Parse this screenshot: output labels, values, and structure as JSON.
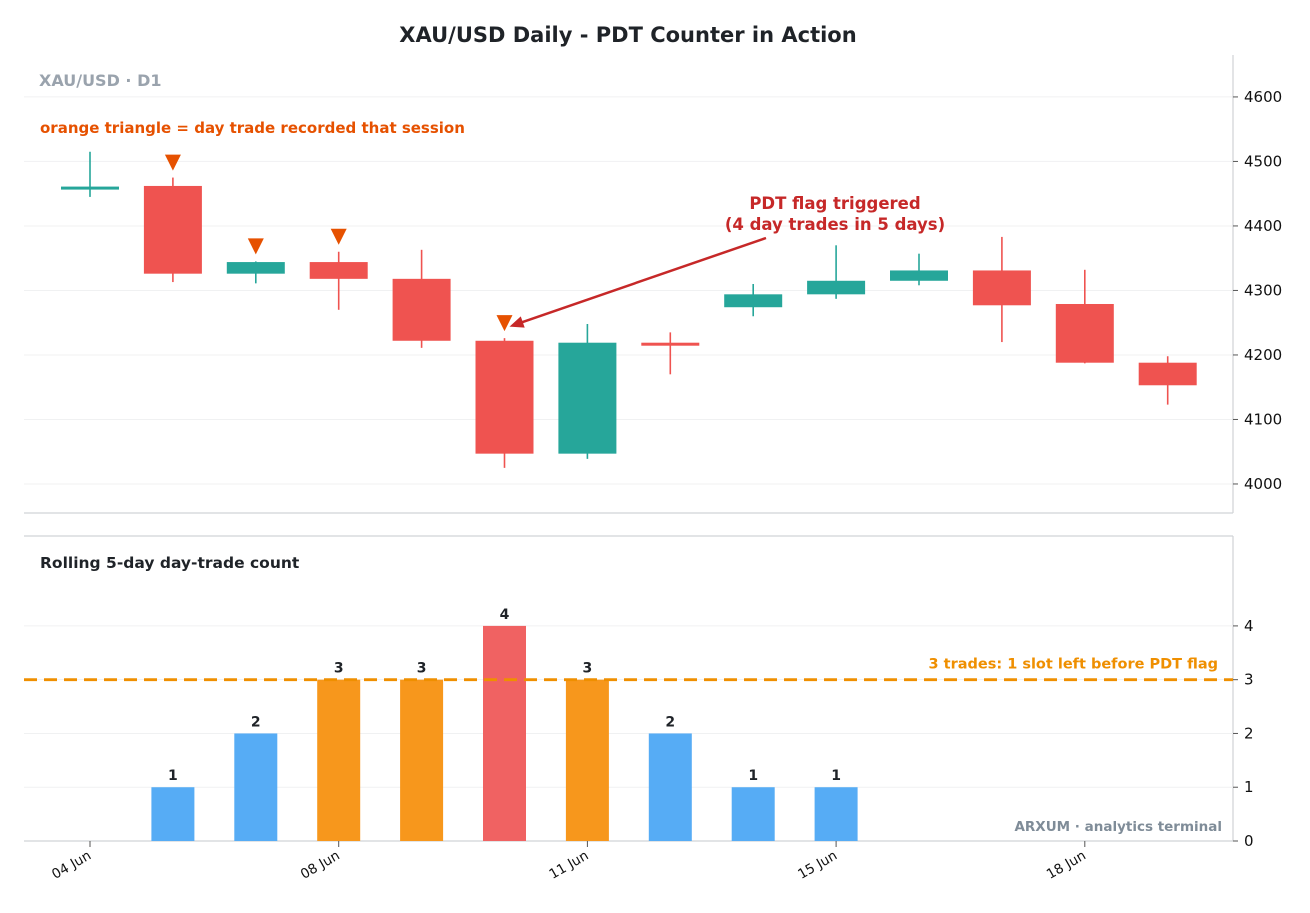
{
  "title": "XAU/USD Daily - PDT Counter in Action",
  "colors": {
    "up": "#26a69a",
    "down": "#ef5350",
    "marker": "#e65100",
    "bar_normal": "#56acf5",
    "bar_warn": "#f7971c",
    "bar_flag": "#f06262",
    "threshold": "#ef8f00",
    "annotation": "#c62828"
  },
  "chart_data": [
    {
      "type": "candlestick",
      "symbol_label": "XAU/USD · D1",
      "legend_note": "orange triangle = day trade recorded that session",
      "ylim": [
        3955,
        4665
      ],
      "y_ticks": [
        "4000",
        "4100",
        "4200",
        "4300",
        "4400",
        "4500",
        "4600"
      ],
      "x_ticks": [
        "04 Jun",
        "08 Jun",
        "11 Jun",
        "15 Jun",
        "18 Jun"
      ],
      "x_tick_index": [
        0,
        3,
        6,
        9,
        12
      ],
      "candles": [
        {
          "open": 4459,
          "high": 4515,
          "low": 4445,
          "close": 4461,
          "day_trade": false
        },
        {
          "open": 4462,
          "high": 4475,
          "low": 4313,
          "close": 4326,
          "day_trade": true
        },
        {
          "open": 4326,
          "high": 4345,
          "low": 4311,
          "close": 4344,
          "day_trade": true
        },
        {
          "open": 4344,
          "high": 4360,
          "low": 4270,
          "close": 4318,
          "day_trade": true
        },
        {
          "open": 4318,
          "high": 4363,
          "low": 4211,
          "close": 4222,
          "day_trade": false
        },
        {
          "open": 4222,
          "high": 4226,
          "low": 4025,
          "close": 4047,
          "day_trade": true
        },
        {
          "open": 4047,
          "high": 4248,
          "low": 4039,
          "close": 4219,
          "day_trade": false
        },
        {
          "open": 4219,
          "high": 4235,
          "low": 4170,
          "close": 4217,
          "day_trade": false
        },
        {
          "open": 4274,
          "high": 4310,
          "low": 4260,
          "close": 4294,
          "day_trade": false
        },
        {
          "open": 4294,
          "high": 4370,
          "low": 4287,
          "close": 4315,
          "day_trade": false
        },
        {
          "open": 4315,
          "high": 4357,
          "low": 4308,
          "close": 4331,
          "day_trade": false
        },
        {
          "open": 4331,
          "high": 4383,
          "low": 4220,
          "close": 4277,
          "day_trade": false
        },
        {
          "open": 4279,
          "high": 4332,
          "low": 4187,
          "close": 4188,
          "day_trade": false
        },
        {
          "open": 4188,
          "high": 4198,
          "low": 4123,
          "close": 4153,
          "day_trade": false
        }
      ],
      "annotation": {
        "lines": [
          "PDT flag triggered",
          "(4 day trades in 5 days)"
        ],
        "target_index": 5,
        "target_value": 4244
      }
    },
    {
      "type": "bar",
      "title": "Rolling 5-day day-trade count",
      "ylim": [
        0,
        5.3
      ],
      "y_ticks": [
        "0",
        "1",
        "2",
        "3",
        "4"
      ],
      "values": [
        0,
        1,
        2,
        3,
        3,
        4,
        3,
        2,
        1,
        1,
        0,
        0,
        0,
        0
      ],
      "threshold": 3,
      "threshold_label": "3 trades: 1 slot left before PDT flag"
    }
  ],
  "watermark": "ARXUM · analytics terminal"
}
